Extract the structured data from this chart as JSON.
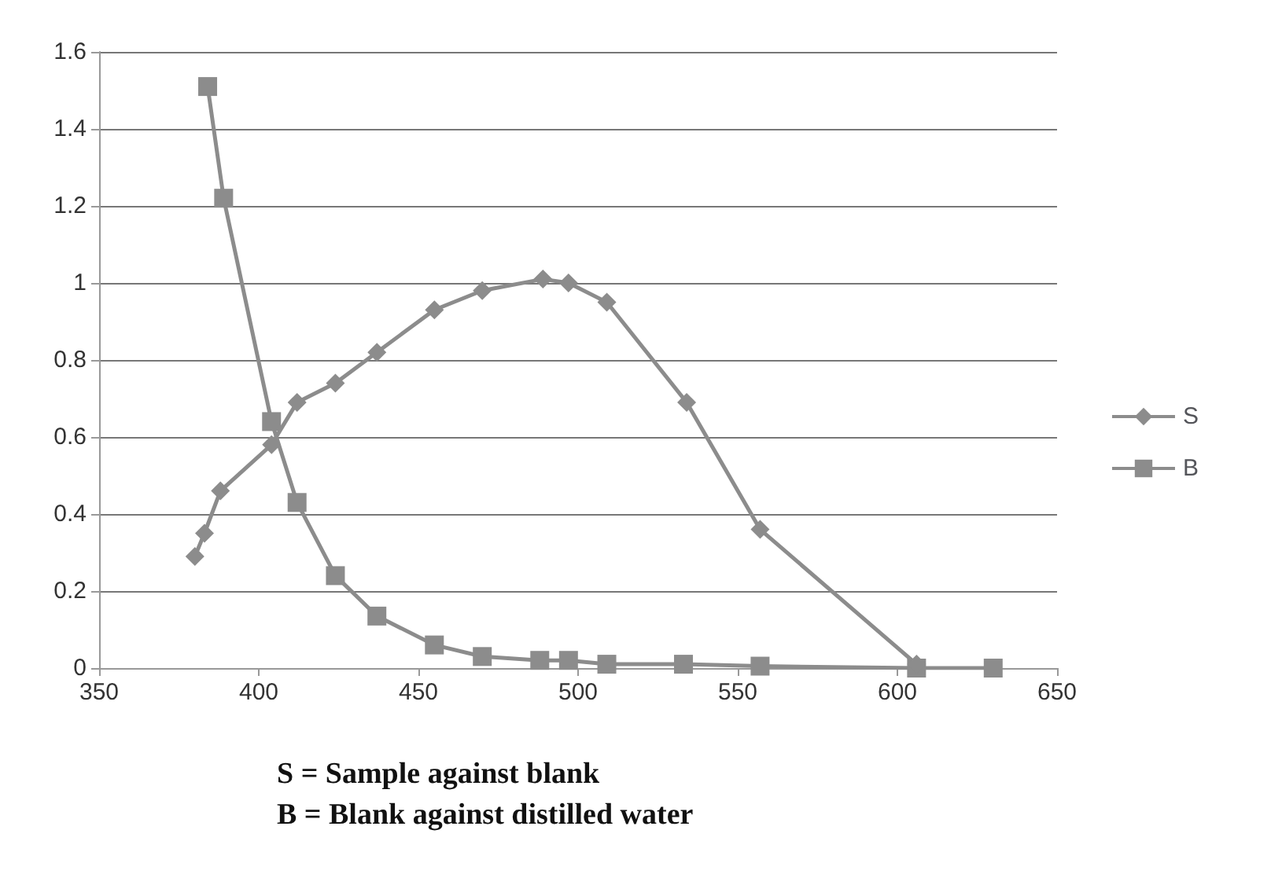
{
  "chart_data": {
    "type": "line",
    "xlim": [
      350,
      650
    ],
    "xticks": [
      350,
      400,
      450,
      500,
      550,
      600,
      650
    ],
    "ylim": [
      0,
      1.6
    ],
    "yticks": [
      0,
      0.2,
      0.4,
      0.6,
      0.8,
      1,
      1.2,
      1.4,
      1.6
    ],
    "grid": "y",
    "legend": "right",
    "line_style": "solid",
    "series": [
      {
        "name": "S",
        "color": "#8c8c8c",
        "marker": "diamond",
        "x": [
          380,
          383,
          388,
          404,
          412,
          424,
          437,
          455,
          470,
          489,
          497,
          509,
          534,
          557,
          606
        ],
        "values": [
          0.29,
          0.35,
          0.46,
          0.58,
          0.69,
          0.74,
          0.82,
          0.93,
          0.98,
          1.01,
          1.0,
          0.95,
          0.69,
          0.36,
          0.01
        ]
      },
      {
        "name": "B",
        "color": "#8c8c8c",
        "marker": "square",
        "x": [
          384,
          389,
          404,
          412,
          424,
          437,
          455,
          470,
          488,
          497,
          509,
          533,
          557,
          606,
          630
        ],
        "values": [
          1.51,
          1.22,
          0.64,
          0.43,
          0.24,
          0.135,
          0.06,
          0.03,
          0.02,
          0.02,
          0.01,
          0.01,
          0.005,
          0,
          0
        ]
      }
    ],
    "annotations": [
      "S = Sample against blank",
      "B = Blank against distilled water"
    ]
  }
}
